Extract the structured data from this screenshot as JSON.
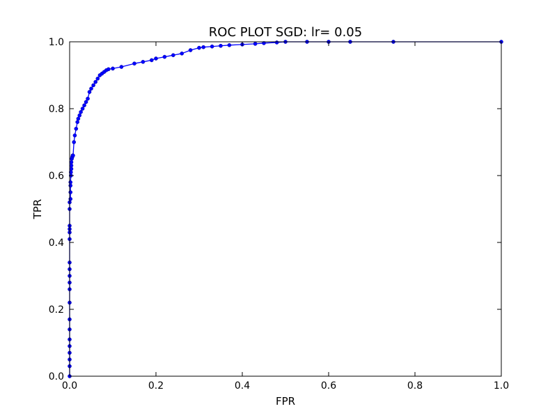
{
  "chart_data": {
    "type": "line",
    "title": "ROC PLOT SGD: lr= 0.05",
    "xlabel": "FPR",
    "ylabel": "TPR",
    "xlim": [
      0.0,
      1.0
    ],
    "ylim": [
      0.0,
      1.0
    ],
    "xticks": [
      "0.0",
      "0.2",
      "0.4",
      "0.6",
      "0.8",
      "1.0"
    ],
    "yticks": [
      "0.0",
      "0.2",
      "0.4",
      "0.6",
      "0.8",
      "1.0"
    ],
    "grid": false,
    "legend": "none",
    "line_color": "#0000ff",
    "series": [
      {
        "x": [
          0.0,
          0.0,
          0.0,
          0.0,
          0.0,
          0.0,
          0.0,
          0.0,
          0.0,
          0.0,
          0.0,
          0.0,
          0.0,
          0.0,
          0.0,
          0.0,
          0.0,
          0.0,
          0.0,
          0.0,
          0.002,
          0.002,
          0.002,
          0.002,
          0.003,
          0.003,
          0.004,
          0.004,
          0.004,
          0.005,
          0.006,
          0.007,
          0.008,
          0.01,
          0.012,
          0.015,
          0.018,
          0.02,
          0.023,
          0.026,
          0.03,
          0.034,
          0.038,
          0.042,
          0.046,
          0.05,
          0.055,
          0.06,
          0.065,
          0.07,
          0.075,
          0.08,
          0.085,
          0.09,
          0.1,
          0.12,
          0.15,
          0.17,
          0.19,
          0.2,
          0.22,
          0.24,
          0.26,
          0.28,
          0.3,
          0.31,
          0.33,
          0.35,
          0.37,
          0.4,
          0.43,
          0.45,
          0.48,
          0.5,
          0.55,
          0.6,
          0.65,
          0.75,
          1.0
        ],
        "y": [
          0.0,
          0.03,
          0.05,
          0.07,
          0.09,
          0.11,
          0.14,
          0.17,
          0.22,
          0.26,
          0.28,
          0.3,
          0.32,
          0.34,
          0.41,
          0.43,
          0.44,
          0.45,
          0.5,
          0.52,
          0.53,
          0.55,
          0.57,
          0.58,
          0.6,
          0.61,
          0.62,
          0.63,
          0.64,
          0.65,
          0.655,
          0.66,
          0.66,
          0.7,
          0.72,
          0.74,
          0.76,
          0.77,
          0.78,
          0.79,
          0.8,
          0.81,
          0.82,
          0.83,
          0.85,
          0.86,
          0.87,
          0.88,
          0.89,
          0.9,
          0.905,
          0.91,
          0.915,
          0.918,
          0.92,
          0.925,
          0.935,
          0.94,
          0.945,
          0.95,
          0.955,
          0.96,
          0.965,
          0.975,
          0.982,
          0.984,
          0.986,
          0.988,
          0.99,
          0.992,
          0.994,
          0.996,
          0.998,
          1.0,
          1.0,
          1.0,
          1.0,
          1.0,
          1.0
        ]
      }
    ]
  }
}
